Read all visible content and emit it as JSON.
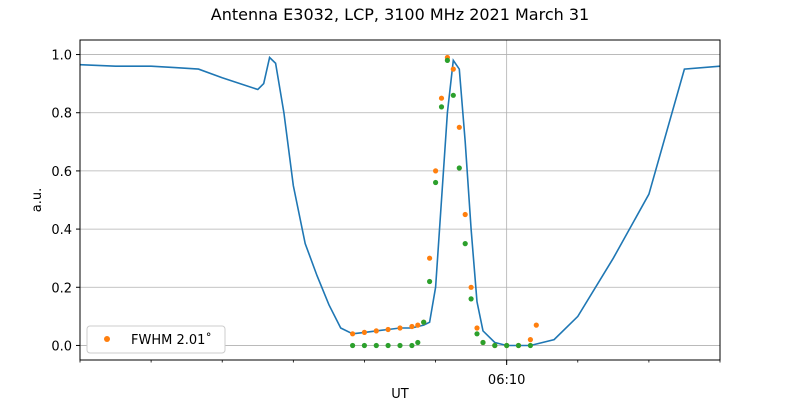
{
  "chart_data": {
    "type": "line",
    "title": "Antenna E3032, LCP, 3100 MHz 2021 March 31",
    "xlabel": "UT",
    "ylabel": "a.u.",
    "x_unit": "minutes UT",
    "xlim": [
      "06:04:00",
      "06:13:00"
    ],
    "ylim": [
      -0.05,
      1.05
    ],
    "x_ticks": [
      {
        "value": "06:10",
        "label": "06:10"
      }
    ],
    "y_ticks": [
      0.0,
      0.2,
      0.4,
      0.6,
      0.8,
      1.0
    ],
    "grid": true,
    "legend": {
      "placement": "lower left",
      "entries": [
        "FWHM 2.01$^\\circ$"
      ],
      "display": "FWHM 2.01˚"
    },
    "colors": {
      "line": "#1f77b4",
      "orange_points": "#ff7f0e",
      "green_points": "#2ca02c",
      "grid": "#b0b0b0"
    },
    "series": [
      {
        "style": "line",
        "x": [
          "06:04:00",
          "06:04:30",
          "06:05:00",
          "06:05:20",
          "06:05:40",
          "06:06:00",
          "06:06:15",
          "06:06:30",
          "06:06:35",
          "06:06:40",
          "06:06:45",
          "06:06:52",
          "06:07:00",
          "06:07:10",
          "06:07:20",
          "06:07:30",
          "06:07:40",
          "06:07:50",
          "06:08:00",
          "06:08:10",
          "06:08:20",
          "06:08:30",
          "06:08:40",
          "06:08:45",
          "06:08:50",
          "06:08:55",
          "06:09:00",
          "06:09:05",
          "06:09:10",
          "06:09:15",
          "06:09:20",
          "06:09:25",
          "06:09:30",
          "06:09:35",
          "06:09:40",
          "06:09:50",
          "06:10:00",
          "06:10:10",
          "06:10:20",
          "06:10:40",
          "06:11:00",
          "06:11:30",
          "06:12:00",
          "06:12:30",
          "06:13:00"
        ],
        "y": [
          0.965,
          0.96,
          0.96,
          0.955,
          0.95,
          0.92,
          0.9,
          0.88,
          0.9,
          0.99,
          0.97,
          0.8,
          0.55,
          0.35,
          0.24,
          0.14,
          0.06,
          0.04,
          0.045,
          0.05,
          0.055,
          0.06,
          0.06,
          0.065,
          0.07,
          0.08,
          0.2,
          0.5,
          0.8,
          0.98,
          0.95,
          0.7,
          0.4,
          0.15,
          0.05,
          0.01,
          0.0,
          0.0,
          0.0,
          0.02,
          0.1,
          0.3,
          0.52,
          0.95,
          0.96
        ]
      },
      {
        "style": "points",
        "label": "FWHM 2.01˚",
        "x": [
          "06:07:50",
          "06:08:00",
          "06:08:10",
          "06:08:20",
          "06:08:30",
          "06:08:40",
          "06:08:45",
          "06:08:50",
          "06:08:55",
          "06:09:00",
          "06:09:05",
          "06:09:10",
          "06:09:15",
          "06:09:20",
          "06:09:25",
          "06:09:30",
          "06:09:35",
          "06:09:40",
          "06:09:50",
          "06:10:00",
          "06:10:10",
          "06:10:20",
          "06:10:25"
        ],
        "y": [
          0.04,
          0.045,
          0.05,
          0.055,
          0.06,
          0.065,
          0.07,
          0.08,
          0.3,
          0.6,
          0.85,
          0.99,
          0.95,
          0.75,
          0.45,
          0.2,
          0.06,
          0.01,
          0.0,
          0.0,
          0.0,
          0.02,
          0.07
        ]
      },
      {
        "style": "points",
        "x": [
          "06:07:50",
          "06:08:00",
          "06:08:10",
          "06:08:20",
          "06:08:30",
          "06:08:40",
          "06:08:45",
          "06:08:50",
          "06:08:55",
          "06:09:00",
          "06:09:05",
          "06:09:10",
          "06:09:15",
          "06:09:20",
          "06:09:25",
          "06:09:30",
          "06:09:35",
          "06:09:40",
          "06:09:50",
          "06:10:00",
          "06:10:10",
          "06:10:20"
        ],
        "y": [
          0.0,
          0.0,
          0.0,
          0.0,
          0.0,
          0.0,
          0.01,
          0.08,
          0.22,
          0.56,
          0.82,
          0.98,
          0.86,
          0.61,
          0.35,
          0.16,
          0.04,
          0.01,
          0.0,
          0.0,
          0.0,
          0.0
        ]
      }
    ]
  }
}
